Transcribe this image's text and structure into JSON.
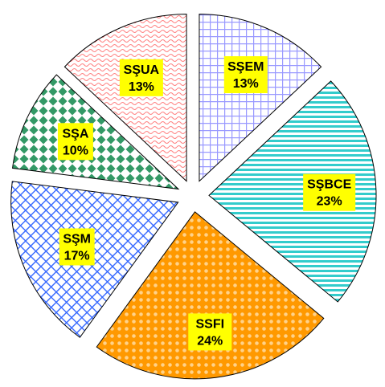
{
  "chart_data": {
    "type": "pie",
    "exploded": true,
    "start_angle_deg": 0,
    "direction": "clockwise",
    "slices": [
      {
        "label": "SŞEM",
        "value": 13,
        "value_label": "13%",
        "color": "#9999ff",
        "pattern": "grid"
      },
      {
        "label": "SŞBCE",
        "value": 23,
        "value_label": "23%",
        "color": "#33cccc",
        "pattern": "horizontal-stripes"
      },
      {
        "label": "SSFI",
        "value": 24,
        "value_label": "24%",
        "color": "#ff9900",
        "pattern": "circles"
      },
      {
        "label": "SŞM",
        "value": 17,
        "value_label": "17%",
        "color": "#3366ff",
        "pattern": "diagonal-grid"
      },
      {
        "label": "SŞA",
        "value": 10,
        "value_label": "10%",
        "color": "#339966",
        "pattern": "diamonds"
      },
      {
        "label": "SŞUA",
        "value": 13,
        "value_label": "13%",
        "color": "#ff8080",
        "pattern": "waves"
      }
    ],
    "label_box_color": "#ffff00",
    "legend": "none"
  }
}
